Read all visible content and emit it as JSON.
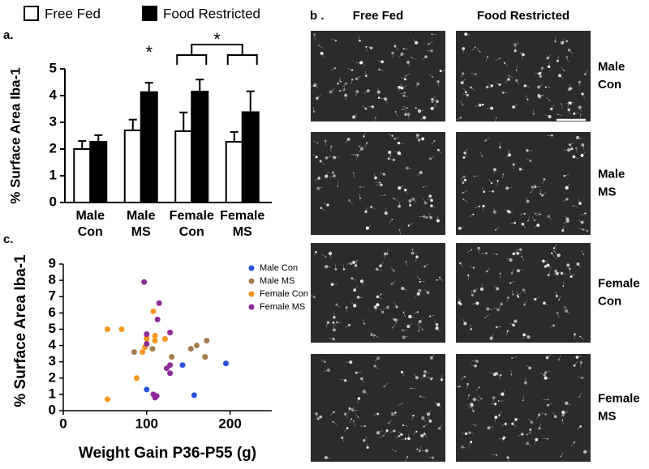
{
  "chart_data": [
    {
      "type": "bar",
      "y_label": "% Surface Area Iba-1",
      "categories": [
        "Male Con",
        "Male MS",
        "Female Con",
        "Female MS"
      ],
      "series": [
        {
          "name": "Free Fed",
          "color": "#ffffff",
          "values": [
            2.0,
            2.7,
            2.67,
            2.27
          ],
          "errors": [
            0.3,
            0.4,
            0.7,
            0.37
          ]
        },
        {
          "name": "Food Restricted",
          "color": "#000000",
          "values": [
            2.27,
            4.13,
            4.15,
            3.38
          ],
          "errors": [
            0.25,
            0.35,
            0.45,
            0.78
          ]
        }
      ],
      "ylim": [
        0,
        5
      ],
      "yticks": [
        0,
        1,
        2,
        3,
        4,
        5
      ],
      "annotations": [
        "*",
        "*"
      ]
    },
    {
      "type": "scatter",
      "x_label": "Weight Gain P36-P55 (g)",
      "y_label": "% Surface Area Iba-1",
      "xlim": [
        0,
        250
      ],
      "xticks": [
        0,
        100,
        200
      ],
      "ylim": [
        0,
        9
      ],
      "yticks": [
        0,
        1,
        2,
        3,
        4,
        5,
        6,
        7,
        8,
        9
      ],
      "series": [
        {
          "name": "Male Con",
          "color": "#2a52e0",
          "x": [
            100,
            143,
            157,
            195
          ],
          "values": [
            1.3,
            2.8,
            0.95,
            2.9
          ]
        },
        {
          "name": "Male MS",
          "color": "#a67c4e",
          "x": [
            85,
            107,
            153,
            160,
            172,
            170,
            130
          ],
          "values": [
            3.6,
            3.8,
            3.8,
            4.0,
            4.3,
            3.3,
            3.3
          ]
        },
        {
          "name": "Female Con",
          "color": "#f5961e",
          "x": [
            53,
            70,
            53,
            88,
            95,
            98,
            100,
            108,
            110,
            122,
            100,
            110
          ],
          "values": [
            5.0,
            5.0,
            0.7,
            2.0,
            3.6,
            3.9,
            4.4,
            6.1,
            4.6,
            4.4,
            4.5,
            4.3
          ]
        },
        {
          "name": "Female MS",
          "color": "#8e2a98",
          "x": [
            97,
            115,
            113,
            100,
            100,
            128,
            128,
            128,
            108,
            112,
            110,
            124
          ],
          "values": [
            7.9,
            6.6,
            5.6,
            4.7,
            4.1,
            4.8,
            2.8,
            2.3,
            1.0,
            0.9,
            0.8,
            2.6
          ]
        }
      ]
    }
  ],
  "panel_labels": [
    "a.",
    "b .",
    "c."
  ],
  "micrographs": {
    "columns": [
      "Free Fed",
      "Food Restricted"
    ],
    "rows": [
      "Male Con",
      "Male MS",
      "Female Con",
      "Female MS"
    ]
  }
}
